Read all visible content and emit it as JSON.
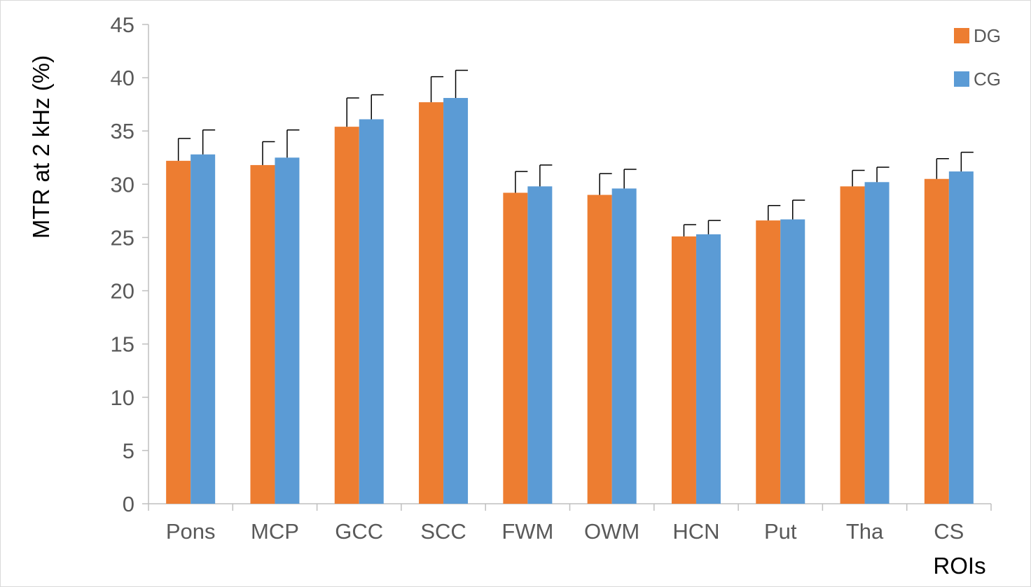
{
  "chart_data": {
    "type": "bar",
    "title": "",
    "xlabel": "ROIs",
    "ylabel": "MTR at 2 kHz (%)",
    "ylim": [
      0,
      45
    ],
    "yticks": [
      0,
      5,
      10,
      15,
      20,
      25,
      30,
      35,
      40,
      45
    ],
    "grid": false,
    "legend_position": "top-right",
    "categories": [
      "Pons",
      "MCP",
      "GCC",
      "SCC",
      "FWM",
      "OWM",
      "HCN",
      "Put",
      "Tha",
      "CS"
    ],
    "series": [
      {
        "name": "DG",
        "color": "#ED7D31",
        "values": [
          32.2,
          31.8,
          35.4,
          37.7,
          29.2,
          29.0,
          25.1,
          26.6,
          29.8,
          30.5
        ],
        "errors": [
          2.1,
          2.2,
          2.7,
          2.4,
          2.0,
          2.0,
          1.1,
          1.4,
          1.5,
          1.9
        ]
      },
      {
        "name": "CG",
        "color": "#5B9BD5",
        "values": [
          32.8,
          32.5,
          36.1,
          38.1,
          29.8,
          29.6,
          25.3,
          26.7,
          30.2,
          31.2
        ],
        "errors": [
          2.3,
          2.6,
          2.3,
          2.6,
          2.0,
          1.8,
          1.3,
          1.8,
          1.4,
          1.8
        ]
      }
    ]
  }
}
